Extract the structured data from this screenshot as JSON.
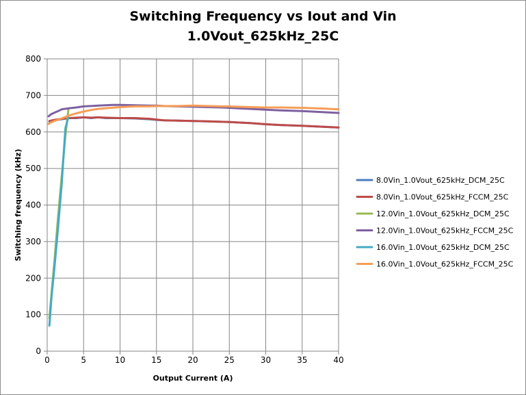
{
  "chart_data": {
    "type": "line",
    "title_lines": [
      "Switching Frequency vs Iout and Vin",
      "1.0Vout_625kHz_25C"
    ],
    "xlabel": "Output Current (A)",
    "ylabel": "Switching frequency (kHz)",
    "xlim": [
      0,
      40
    ],
    "ylim": [
      0,
      800
    ],
    "xticks": [
      0,
      5,
      10,
      15,
      20,
      25,
      30,
      35,
      40
    ],
    "yticks": [
      0,
      100,
      200,
      300,
      400,
      500,
      600,
      700,
      800
    ],
    "grid": true,
    "legend_position": "right",
    "series": [
      {
        "name": "8.0Vin_1.0Vout_625kHz_DCM_25C",
        "color": "#4a7ebb",
        "x": [
          0.3,
          1,
          2,
          3,
          4,
          5,
          6,
          7,
          8,
          10,
          12,
          14,
          15,
          16,
          18,
          20,
          22,
          25,
          28,
          30,
          32,
          35,
          38,
          40
        ],
        "y": [
          628,
          632,
          635,
          638,
          638,
          640,
          638,
          640,
          638,
          638,
          637,
          635,
          633,
          632,
          631,
          630,
          629,
          627,
          624,
          621,
          619,
          617,
          614,
          612
        ]
      },
      {
        "name": "8.0Vin_1.0Vout_625kHz_FCCM_25C",
        "color": "#be4b48",
        "x": [
          0.3,
          1,
          2,
          3,
          4,
          5,
          6,
          7,
          8,
          10,
          12,
          14,
          15,
          16,
          18,
          20,
          22,
          25,
          28,
          30,
          32,
          35,
          38,
          40
        ],
        "y": [
          630,
          633,
          636,
          638,
          639,
          640,
          639,
          640,
          639,
          638,
          638,
          636,
          634,
          632,
          631,
          630,
          629,
          627,
          624,
          621,
          619,
          617,
          614,
          612
        ]
      },
      {
        "name": "12.0Vin_1.0Vout_625kHz_DCM_25C",
        "color": "#98b954",
        "x": [
          0.3,
          0.6,
          1,
          1.5,
          2,
          2.5,
          2.9
        ],
        "y": [
          90,
          160,
          250,
          370,
          480,
          590,
          660
        ]
      },
      {
        "name": "12.0Vin_1.0Vout_625kHz_FCCM_25C",
        "color": "#7d60a0",
        "x": [
          0.2,
          0.5,
          1,
          1.5,
          2,
          3,
          4,
          5,
          6,
          7,
          8,
          9,
          10,
          12,
          14,
          15,
          16,
          18,
          20,
          22,
          24,
          25,
          26,
          28,
          30,
          32,
          35,
          38,
          40
        ],
        "y": [
          643,
          648,
          653,
          657,
          662,
          665,
          667,
          670,
          671,
          672,
          673,
          674,
          674,
          673,
          672,
          672,
          671,
          670,
          669,
          668,
          667,
          666,
          665,
          663,
          661,
          659,
          657,
          654,
          652
        ]
      },
      {
        "name": "16.0Vin_1.0Vout_625kHz_DCM_25C",
        "color": "#46aac5",
        "x": [
          0.3,
          0.6,
          1,
          1.5,
          2,
          2.5,
          2.9
        ],
        "y": [
          70,
          150,
          230,
          340,
          460,
          610,
          640
        ]
      },
      {
        "name": "16.0Vin_1.0Vout_625kHz_FCCM_25C",
        "color": "#f59d56",
        "x": [
          0.2,
          0.5,
          1,
          2,
          3,
          4,
          5,
          6,
          7,
          8,
          10,
          12,
          14,
          15,
          16,
          18,
          20,
          22,
          24,
          25,
          26,
          28,
          30,
          32,
          35,
          38,
          40
        ],
        "y": [
          622,
          626,
          630,
          637,
          645,
          651,
          656,
          660,
          663,
          665,
          668,
          670,
          670,
          671,
          671,
          671,
          672,
          671,
          670,
          670,
          669,
          668,
          667,
          667,
          666,
          664,
          662
        ]
      }
    ]
  }
}
